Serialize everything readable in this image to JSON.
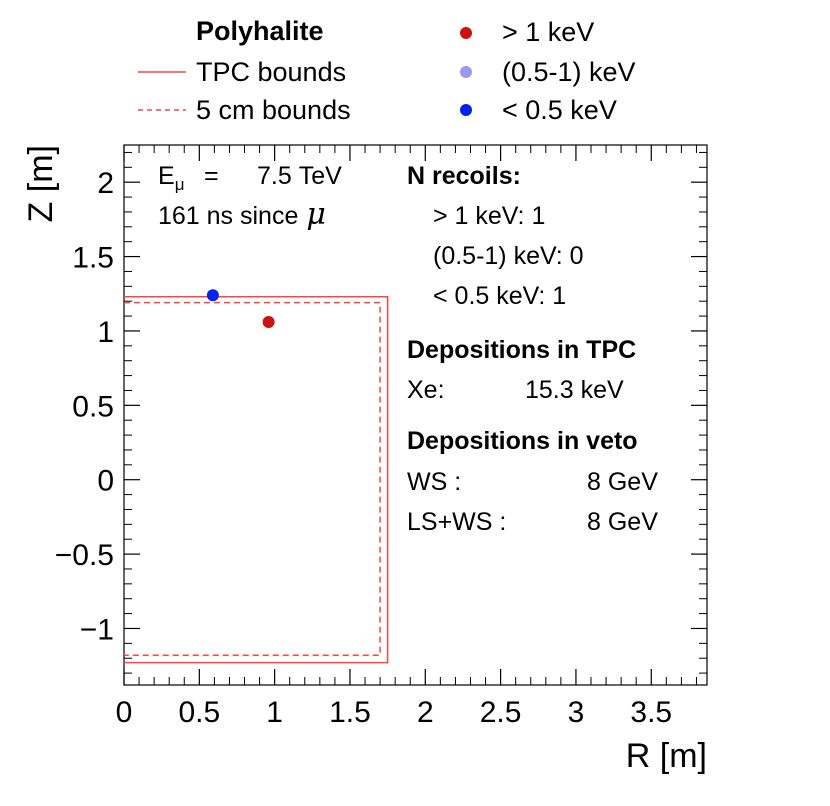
{
  "chart_data": {
    "type": "scatter",
    "xlabel": "R [m]",
    "ylabel": "Z [m]",
    "xlim": [
      0,
      3.87
    ],
    "ylim": [
      -1.38,
      2.25
    ],
    "x_ticks": [
      0,
      0.5,
      1,
      1.5,
      2,
      2.5,
      3,
      3.5
    ],
    "x_tick_labels": [
      "0",
      "0.5",
      "1",
      "1.5",
      "2",
      "2.5",
      "3",
      "3.5"
    ],
    "y_ticks": [
      -1,
      -0.5,
      0,
      0.5,
      1,
      1.5,
      2
    ],
    "y_tick_labels": [
      "−1",
      "−0.5",
      "0",
      "0.5",
      "1",
      "1.5",
      "2"
    ],
    "grid": false,
    "legend": {
      "title": "Polyhalite",
      "entries": [
        {
          "label": "TPC bounds",
          "kind": "line",
          "style": "solid",
          "color": "#ff4444"
        },
        {
          "label": "5 cm bounds",
          "kind": "line",
          "style": "dashed",
          "color": "#ff4444"
        },
        {
          "label": "> 1 keV",
          "kind": "marker",
          "color": "#cc1111"
        },
        {
          "label": "(0.5-1) keV",
          "kind": "marker",
          "color": "#9999ee"
        },
        {
          "label": "< 0.5 keV",
          "kind": "marker",
          "color": "#0022ee"
        }
      ]
    },
    "bounds": {
      "tpc": {
        "r_max": 1.75,
        "z_min": -1.23,
        "z_max": 1.23,
        "color": "#ff4444"
      },
      "five_cm": {
        "r_max": 1.7,
        "z_min": -1.18,
        "z_max": 1.19,
        "color": "#ff4444"
      }
    },
    "series": [
      {
        "name": "> 1 keV",
        "color": "#cc1111",
        "points": [
          {
            "r": 0.96,
            "z": 1.06
          }
        ]
      },
      {
        "name": "(0.5-1) keV",
        "color": "#9999ee",
        "points": []
      },
      {
        "name": "< 0.5 keV",
        "color": "#0022ee",
        "points": [
          {
            "r": 0.59,
            "z": 1.24
          }
        ]
      }
    ]
  },
  "annotations": {
    "energy_label": "E",
    "energy_sub": "μ",
    "energy_eq": "=",
    "energy_value": "7.5 TeV",
    "time_text": "161 ns since",
    "mu_symbol": "μ",
    "recoils_title": "N recoils:",
    "recoils": [
      {
        "label": "> 1 keV: 1"
      },
      {
        "label": "(0.5-1) keV: 0"
      },
      {
        "label": "< 0.5 keV: 1"
      }
    ],
    "tpc_title": "Depositions in TPC",
    "tpc_rows": [
      {
        "label": "Xe:",
        "value": "15.3 keV"
      }
    ],
    "veto_title": "Depositions in veto",
    "veto_rows": [
      {
        "label": "WS :",
        "value": "8 GeV"
      },
      {
        "label": "LS+WS :",
        "value": "8 GeV"
      }
    ]
  }
}
